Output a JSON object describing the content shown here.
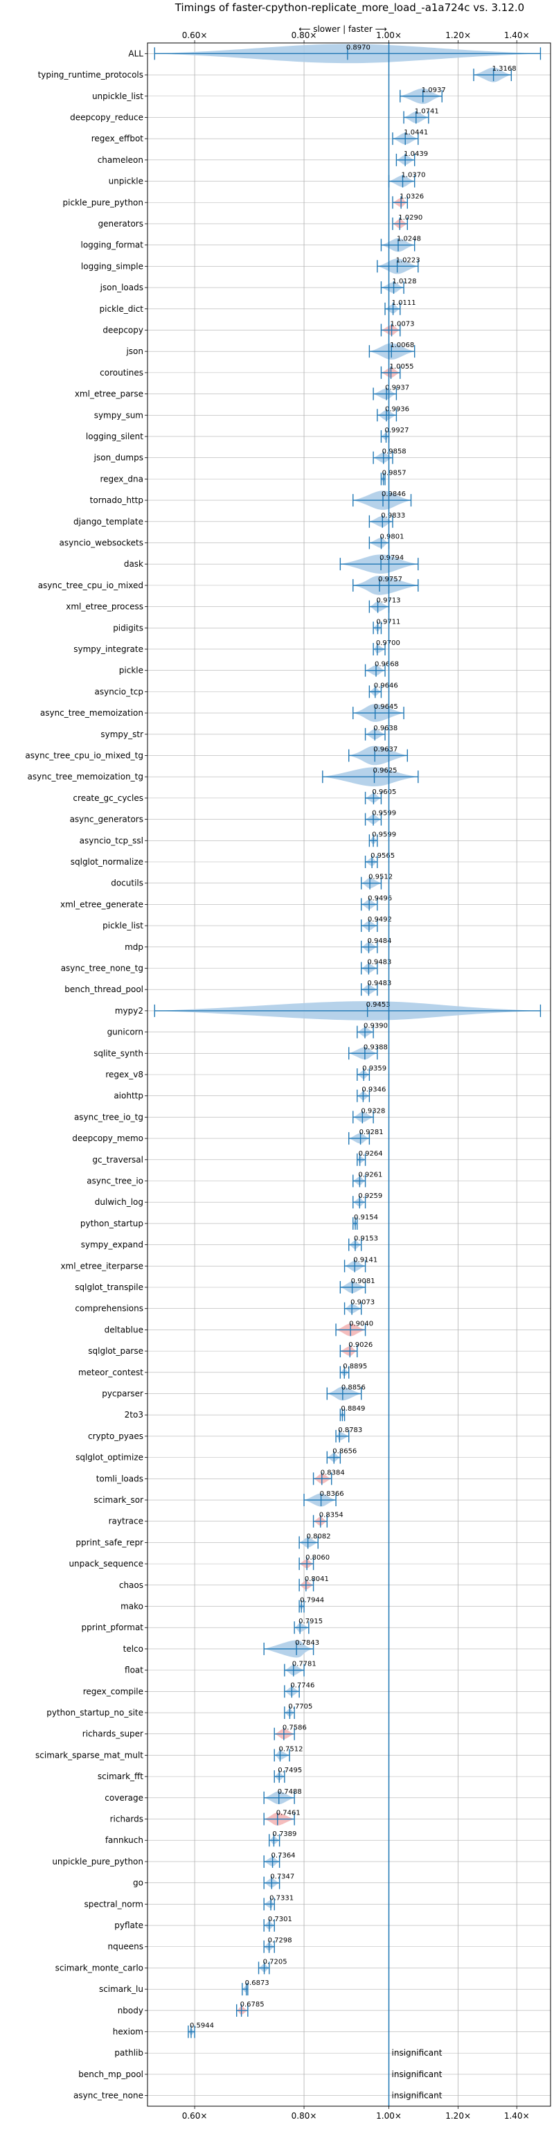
{
  "chart_data": {
    "type": "violin",
    "title": "Timings of faster-cpython-replicate_more_load_-a1a724c vs. 3.12.0",
    "xlabel_top": "⟵ slower | faster ⟶",
    "xscale": "log",
    "xlim": [
      0.53,
      1.53
    ],
    "xticks": [
      0.6,
      0.8,
      1.0,
      1.2,
      1.4
    ],
    "xtick_labels": [
      "0.60×",
      "0.80×",
      "1.00×",
      "1.20×",
      "1.40×"
    ],
    "reference_line": 1.0,
    "grid": true,
    "benchmarks": [
      {
        "name": "ALL",
        "value": 0.897,
        "lo": 0.54,
        "hi": 1.49,
        "highlight": false,
        "show_label": true
      },
      {
        "name": "typing_runtime_protocols",
        "value": 1.3168,
        "lo": 1.25,
        "hi": 1.38,
        "highlight": false,
        "show_label": true
      },
      {
        "name": "unpickle_list",
        "value": 1.0937,
        "lo": 1.03,
        "hi": 1.15,
        "highlight": false,
        "show_label": true
      },
      {
        "name": "deepcopy_reduce",
        "value": 1.0741,
        "lo": 1.04,
        "hi": 1.11,
        "highlight": false,
        "show_label": true
      },
      {
        "name": "regex_effbot",
        "value": 1.0441,
        "lo": 1.01,
        "hi": 1.08,
        "highlight": false,
        "show_label": true
      },
      {
        "name": "chameleon",
        "value": 1.0439,
        "lo": 1.02,
        "hi": 1.07,
        "highlight": false,
        "show_label": true
      },
      {
        "name": "unpickle",
        "value": 1.037,
        "lo": 1.0,
        "hi": 1.07,
        "highlight": false,
        "show_label": true
      },
      {
        "name": "pickle_pure_python",
        "value": 1.0326,
        "lo": 1.01,
        "hi": 1.05,
        "highlight": true,
        "show_label": true
      },
      {
        "name": "generators",
        "value": 1.029,
        "lo": 1.01,
        "hi": 1.05,
        "highlight": true,
        "show_label": true
      },
      {
        "name": "logging_format",
        "value": 1.0248,
        "lo": 0.98,
        "hi": 1.07,
        "highlight": false,
        "show_label": true
      },
      {
        "name": "logging_simple",
        "value": 1.0223,
        "lo": 0.97,
        "hi": 1.08,
        "highlight": false,
        "show_label": true
      },
      {
        "name": "json_loads",
        "value": 1.0128,
        "lo": 0.98,
        "hi": 1.04,
        "highlight": false,
        "show_label": true
      },
      {
        "name": "pickle_dict",
        "value": 1.0111,
        "lo": 0.99,
        "hi": 1.03,
        "highlight": false,
        "show_label": true
      },
      {
        "name": "deepcopy",
        "value": 1.0073,
        "lo": 0.98,
        "hi": 1.03,
        "highlight": true,
        "show_label": true
      },
      {
        "name": "json",
        "value": 1.0068,
        "lo": 0.95,
        "hi": 1.07,
        "highlight": false,
        "show_label": true
      },
      {
        "name": "coroutines",
        "value": 1.0055,
        "lo": 0.98,
        "hi": 1.03,
        "highlight": true,
        "show_label": true
      },
      {
        "name": "xml_etree_parse",
        "value": 0.9937,
        "lo": 0.96,
        "hi": 1.02,
        "highlight": false,
        "show_label": true
      },
      {
        "name": "sympy_sum",
        "value": 0.9936,
        "lo": 0.97,
        "hi": 1.02,
        "highlight": false,
        "show_label": true
      },
      {
        "name": "logging_silent",
        "value": 0.9927,
        "lo": 0.98,
        "hi": 1.0,
        "highlight": false,
        "show_label": true
      },
      {
        "name": "json_dumps",
        "value": 0.9858,
        "lo": 0.96,
        "hi": 1.01,
        "highlight": false,
        "show_label": true
      },
      {
        "name": "regex_dna",
        "value": 0.9857,
        "lo": 0.98,
        "hi": 0.99,
        "highlight": false,
        "show_label": true
      },
      {
        "name": "tornado_http",
        "value": 0.9846,
        "lo": 0.91,
        "hi": 1.06,
        "highlight": false,
        "show_label": true
      },
      {
        "name": "django_template",
        "value": 0.9833,
        "lo": 0.95,
        "hi": 1.01,
        "highlight": false,
        "show_label": true
      },
      {
        "name": "asyncio_websockets",
        "value": 0.9801,
        "lo": 0.95,
        "hi": 1.0,
        "highlight": false,
        "show_label": true
      },
      {
        "name": "dask",
        "value": 0.9794,
        "lo": 0.88,
        "hi": 1.08,
        "highlight": false,
        "show_label": true
      },
      {
        "name": "async_tree_cpu_io_mixed",
        "value": 0.9757,
        "lo": 0.91,
        "hi": 1.08,
        "highlight": false,
        "show_label": true
      },
      {
        "name": "xml_etree_process",
        "value": 0.9713,
        "lo": 0.95,
        "hi": 1.0,
        "highlight": false,
        "show_label": true
      },
      {
        "name": "pidigits",
        "value": 0.9711,
        "lo": 0.96,
        "hi": 0.98,
        "highlight": false,
        "show_label": true
      },
      {
        "name": "sympy_integrate",
        "value": 0.97,
        "lo": 0.96,
        "hi": 0.99,
        "highlight": false,
        "show_label": true
      },
      {
        "name": "pickle",
        "value": 0.9668,
        "lo": 0.94,
        "hi": 0.99,
        "highlight": false,
        "show_label": true
      },
      {
        "name": "asyncio_tcp",
        "value": 0.9646,
        "lo": 0.95,
        "hi": 0.98,
        "highlight": false,
        "show_label": true
      },
      {
        "name": "async_tree_memoization",
        "value": 0.9645,
        "lo": 0.91,
        "hi": 1.04,
        "highlight": false,
        "show_label": true
      },
      {
        "name": "sympy_str",
        "value": 0.9638,
        "lo": 0.94,
        "hi": 0.99,
        "highlight": false,
        "show_label": true
      },
      {
        "name": "async_tree_cpu_io_mixed_tg",
        "value": 0.9637,
        "lo": 0.9,
        "hi": 1.05,
        "highlight": false,
        "show_label": true
      },
      {
        "name": "async_tree_memoization_tg",
        "value": 0.9625,
        "lo": 0.84,
        "hi": 1.08,
        "highlight": false,
        "show_label": true
      },
      {
        "name": "create_gc_cycles",
        "value": 0.9605,
        "lo": 0.94,
        "hi": 0.98,
        "highlight": false,
        "show_label": true
      },
      {
        "name": "async_generators",
        "value": 0.9599,
        "lo": 0.94,
        "hi": 0.98,
        "highlight": false,
        "show_label": true
      },
      {
        "name": "asyncio_tcp_ssl",
        "value": 0.9599,
        "lo": 0.95,
        "hi": 0.97,
        "highlight": false,
        "show_label": true
      },
      {
        "name": "sqlglot_normalize",
        "value": 0.9565,
        "lo": 0.94,
        "hi": 0.97,
        "highlight": false,
        "show_label": true
      },
      {
        "name": "docutils",
        "value": 0.9512,
        "lo": 0.93,
        "hi": 0.98,
        "highlight": false,
        "show_label": true
      },
      {
        "name": "xml_etree_generate",
        "value": 0.9496,
        "lo": 0.93,
        "hi": 0.97,
        "highlight": false,
        "show_label": true
      },
      {
        "name": "pickle_list",
        "value": 0.9492,
        "lo": 0.93,
        "hi": 0.97,
        "highlight": false,
        "show_label": true
      },
      {
        "name": "mdp",
        "value": 0.9484,
        "lo": 0.93,
        "hi": 0.97,
        "highlight": false,
        "show_label": true
      },
      {
        "name": "async_tree_none_tg",
        "value": 0.9483,
        "lo": 0.93,
        "hi": 0.97,
        "highlight": false,
        "show_label": true
      },
      {
        "name": "bench_thread_pool",
        "value": 0.9483,
        "lo": 0.93,
        "hi": 0.97,
        "highlight": false,
        "show_label": true
      },
      {
        "name": "mypy2",
        "value": 0.9453,
        "lo": 0.54,
        "hi": 1.49,
        "highlight": false,
        "show_label": true
      },
      {
        "name": "gunicorn",
        "value": 0.939,
        "lo": 0.92,
        "hi": 0.96,
        "highlight": false,
        "show_label": true
      },
      {
        "name": "sqlite_synth",
        "value": 0.9388,
        "lo": 0.9,
        "hi": 0.97,
        "highlight": false,
        "show_label": true
      },
      {
        "name": "regex_v8",
        "value": 0.9359,
        "lo": 0.92,
        "hi": 0.95,
        "highlight": false,
        "show_label": true
      },
      {
        "name": "aiohttp",
        "value": 0.9346,
        "lo": 0.92,
        "hi": 0.95,
        "highlight": false,
        "show_label": true
      },
      {
        "name": "async_tree_io_tg",
        "value": 0.9328,
        "lo": 0.91,
        "hi": 0.96,
        "highlight": false,
        "show_label": true
      },
      {
        "name": "deepcopy_memo",
        "value": 0.9281,
        "lo": 0.9,
        "hi": 0.95,
        "highlight": false,
        "show_label": true
      },
      {
        "name": "gc_traversal",
        "value": 0.9264,
        "lo": 0.92,
        "hi": 0.94,
        "highlight": false,
        "show_label": true
      },
      {
        "name": "async_tree_io",
        "value": 0.9261,
        "lo": 0.91,
        "hi": 0.94,
        "highlight": false,
        "show_label": true
      },
      {
        "name": "dulwich_log",
        "value": 0.9259,
        "lo": 0.91,
        "hi": 0.94,
        "highlight": false,
        "show_label": true
      },
      {
        "name": "python_startup",
        "value": 0.9154,
        "lo": 0.91,
        "hi": 0.92,
        "highlight": false,
        "show_label": true
      },
      {
        "name": "sympy_expand",
        "value": 0.9153,
        "lo": 0.9,
        "hi": 0.93,
        "highlight": false,
        "show_label": true
      },
      {
        "name": "xml_etree_iterparse",
        "value": 0.9141,
        "lo": 0.89,
        "hi": 0.94,
        "highlight": false,
        "show_label": true
      },
      {
        "name": "sqlglot_transpile",
        "value": 0.9081,
        "lo": 0.88,
        "hi": 0.94,
        "highlight": false,
        "show_label": true
      },
      {
        "name": "comprehensions",
        "value": 0.9073,
        "lo": 0.89,
        "hi": 0.93,
        "highlight": false,
        "show_label": true
      },
      {
        "name": "deltablue",
        "value": 0.904,
        "lo": 0.87,
        "hi": 0.94,
        "highlight": true,
        "show_label": true
      },
      {
        "name": "sqlglot_parse",
        "value": 0.9026,
        "lo": 0.88,
        "hi": 0.92,
        "highlight": true,
        "show_label": true
      },
      {
        "name": "meteor_contest",
        "value": 0.8895,
        "lo": 0.88,
        "hi": 0.9,
        "highlight": false,
        "show_label": true
      },
      {
        "name": "pycparser",
        "value": 0.8856,
        "lo": 0.85,
        "hi": 0.93,
        "highlight": false,
        "show_label": true
      },
      {
        "name": "2to3",
        "value": 0.8849,
        "lo": 0.88,
        "hi": 0.89,
        "highlight": false,
        "show_label": true
      },
      {
        "name": "crypto_pyaes",
        "value": 0.8783,
        "lo": 0.87,
        "hi": 0.9,
        "highlight": false,
        "show_label": true
      },
      {
        "name": "sqlglot_optimize",
        "value": 0.8656,
        "lo": 0.85,
        "hi": 0.88,
        "highlight": false,
        "show_label": true
      },
      {
        "name": "tomli_loads",
        "value": 0.8384,
        "lo": 0.82,
        "hi": 0.86,
        "highlight": true,
        "show_label": true
      },
      {
        "name": "scimark_sor",
        "value": 0.8366,
        "lo": 0.8,
        "hi": 0.87,
        "highlight": false,
        "show_label": true
      },
      {
        "name": "raytrace",
        "value": 0.8354,
        "lo": 0.82,
        "hi": 0.85,
        "highlight": true,
        "show_label": true
      },
      {
        "name": "pprint_safe_repr",
        "value": 0.8082,
        "lo": 0.79,
        "hi": 0.83,
        "highlight": false,
        "show_label": true
      },
      {
        "name": "unpack_sequence",
        "value": 0.806,
        "lo": 0.79,
        "hi": 0.82,
        "highlight": true,
        "show_label": true
      },
      {
        "name": "chaos",
        "value": 0.8041,
        "lo": 0.79,
        "hi": 0.82,
        "highlight": true,
        "show_label": true
      },
      {
        "name": "mako",
        "value": 0.7944,
        "lo": 0.79,
        "hi": 0.8,
        "highlight": false,
        "show_label": true
      },
      {
        "name": "pprint_pformat",
        "value": 0.7915,
        "lo": 0.78,
        "hi": 0.81,
        "highlight": false,
        "show_label": true
      },
      {
        "name": "telco",
        "value": 0.7843,
        "lo": 0.72,
        "hi": 0.82,
        "highlight": false,
        "show_label": true
      },
      {
        "name": "float",
        "value": 0.7781,
        "lo": 0.76,
        "hi": 0.8,
        "highlight": false,
        "show_label": true
      },
      {
        "name": "regex_compile",
        "value": 0.7746,
        "lo": 0.76,
        "hi": 0.79,
        "highlight": false,
        "show_label": true
      },
      {
        "name": "python_startup_no_site",
        "value": 0.7705,
        "lo": 0.76,
        "hi": 0.78,
        "highlight": false,
        "show_label": true
      },
      {
        "name": "richards_super",
        "value": 0.7586,
        "lo": 0.74,
        "hi": 0.78,
        "highlight": true,
        "show_label": true
      },
      {
        "name": "scimark_sparse_mat_mult",
        "value": 0.7512,
        "lo": 0.74,
        "hi": 0.77,
        "highlight": false,
        "show_label": true
      },
      {
        "name": "scimark_fft",
        "value": 0.7495,
        "lo": 0.74,
        "hi": 0.76,
        "highlight": false,
        "show_label": true
      },
      {
        "name": "coverage",
        "value": 0.7488,
        "lo": 0.72,
        "hi": 0.78,
        "highlight": false,
        "show_label": true
      },
      {
        "name": "richards",
        "value": 0.7461,
        "lo": 0.72,
        "hi": 0.78,
        "highlight": true,
        "show_label": true
      },
      {
        "name": "fannkuch",
        "value": 0.7389,
        "lo": 0.73,
        "hi": 0.75,
        "highlight": false,
        "show_label": true
      },
      {
        "name": "unpickle_pure_python",
        "value": 0.7364,
        "lo": 0.72,
        "hi": 0.75,
        "highlight": false,
        "show_label": true
      },
      {
        "name": "go",
        "value": 0.7347,
        "lo": 0.72,
        "hi": 0.75,
        "highlight": false,
        "show_label": true
      },
      {
        "name": "spectral_norm",
        "value": 0.7331,
        "lo": 0.72,
        "hi": 0.74,
        "highlight": false,
        "show_label": true
      },
      {
        "name": "pyflate",
        "value": 0.7301,
        "lo": 0.72,
        "hi": 0.74,
        "highlight": false,
        "show_label": true
      },
      {
        "name": "nqueens",
        "value": 0.7298,
        "lo": 0.72,
        "hi": 0.74,
        "highlight": false,
        "show_label": true
      },
      {
        "name": "scimark_monte_carlo",
        "value": 0.7205,
        "lo": 0.71,
        "hi": 0.73,
        "highlight": false,
        "show_label": true
      },
      {
        "name": "scimark_lu",
        "value": 0.6873,
        "lo": 0.68,
        "hi": 0.69,
        "highlight": false,
        "show_label": true
      },
      {
        "name": "nbody",
        "value": 0.6785,
        "lo": 0.67,
        "hi": 0.69,
        "highlight": true,
        "show_label": true
      },
      {
        "name": "hexiom",
        "value": 0.5944,
        "lo": 0.59,
        "hi": 0.6,
        "highlight": false,
        "show_label": true
      },
      {
        "name": "pathlib",
        "insignificant": true
      },
      {
        "name": "bench_mp_pool",
        "insignificant": true
      },
      {
        "name": "async_tree_none",
        "insignificant": true
      }
    ],
    "insignificant_label": "insignificant",
    "colors": {
      "violin": "#aecde8",
      "violin_highlight": "#f4b6b6",
      "marker": "#1f77b4",
      "grid": "#b0b0b0",
      "axis": "#000000"
    }
  }
}
